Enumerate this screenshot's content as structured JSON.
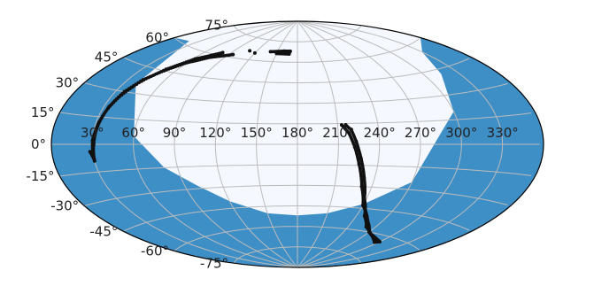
{
  "chart_data": {
    "type": "scatter",
    "projection": "aitoff",
    "title": "",
    "xlabel": "",
    "ylabel": "",
    "grid": true,
    "xlim": [
      0,
      360
    ],
    "ylim": [
      -90,
      90
    ],
    "x_ticks": [
      30,
      60,
      90,
      120,
      150,
      180,
      210,
      240,
      270,
      300,
      330
    ],
    "x_tick_labels": [
      "30°",
      "60°",
      "90°",
      "120°",
      "150°",
      "180°",
      "210°",
      "240°",
      "270°",
      "300°",
      "330°"
    ],
    "y_ticks": [
      75,
      60,
      45,
      30,
      15,
      0,
      -15,
      -30,
      -45,
      -60,
      -75
    ],
    "y_tick_labels": [
      "75°",
      "60°",
      "45°",
      "30°",
      "15°",
      "0°",
      "-15°",
      "-30°",
      "-45°",
      "-60°",
      "-75°"
    ],
    "regions": [
      {
        "label": "",
        "fill": "#f5f9ff",
        "boundary": [
          [
            0,
            60
          ],
          [
            20,
            62
          ],
          [
            40,
            35
          ],
          [
            60,
            5
          ],
          [
            80,
            -15
          ],
          [
            100,
            -28
          ],
          [
            120,
            -40
          ],
          [
            150,
            -50
          ],
          [
            180,
            -52
          ],
          [
            210,
            -50
          ],
          [
            240,
            -42
          ],
          [
            270,
            -25
          ],
          [
            300,
            20
          ],
          [
            315,
            42
          ],
          [
            330,
            55
          ],
          [
            360,
            60
          ]
        ]
      }
    ],
    "series": [
      {
        "label": "",
        "color": "#111111",
        "points": [
          [
            28,
            -4
          ],
          [
            30,
            -8
          ],
          [
            30,
            2
          ],
          [
            32,
            12
          ],
          [
            34,
            20
          ],
          [
            37,
            28
          ],
          [
            42,
            37
          ],
          [
            50,
            46
          ],
          [
            62,
            55
          ],
          [
            80,
            62
          ],
          [
            110,
            66
          ],
          [
            140,
            67
          ],
          [
            160,
            68
          ],
          [
            169,
            68
          ],
          [
            168,
            66
          ],
          [
            150,
            66
          ],
          [
            120,
            65
          ],
          [
            95,
            62
          ],
          [
            75,
            58
          ],
          [
            60,
            52
          ],
          [
            50,
            45
          ],
          [
            42,
            38
          ],
          [
            37,
            30
          ],
          [
            34,
            21
          ],
          [
            32,
            10
          ],
          [
            31,
            0
          ],
          [
            30,
            -9
          ],
          [
            213,
            14
          ],
          [
            218,
            8
          ],
          [
            222,
            -2
          ],
          [
            226,
            -14
          ],
          [
            232,
            -30
          ],
          [
            240,
            -43
          ],
          [
            255,
            -53
          ],
          [
            270,
            -60
          ],
          [
            285,
            -63
          ],
          [
            295,
            -65
          ],
          [
            300,
            -64
          ],
          [
            290,
            -63
          ],
          [
            275,
            -61
          ],
          [
            260,
            -57
          ],
          [
            248,
            -50
          ],
          [
            238,
            -38
          ],
          [
            232,
            -24
          ],
          [
            227,
            -10
          ],
          [
            223,
            2
          ],
          [
            220,
            10
          ],
          [
            216,
            14
          ]
        ]
      }
    ],
    "colors": {
      "background": "#3f8fc7",
      "region": "#f5f9ff",
      "grid": "#bbbbbb",
      "outline": "#000000",
      "points": "#111111"
    }
  }
}
